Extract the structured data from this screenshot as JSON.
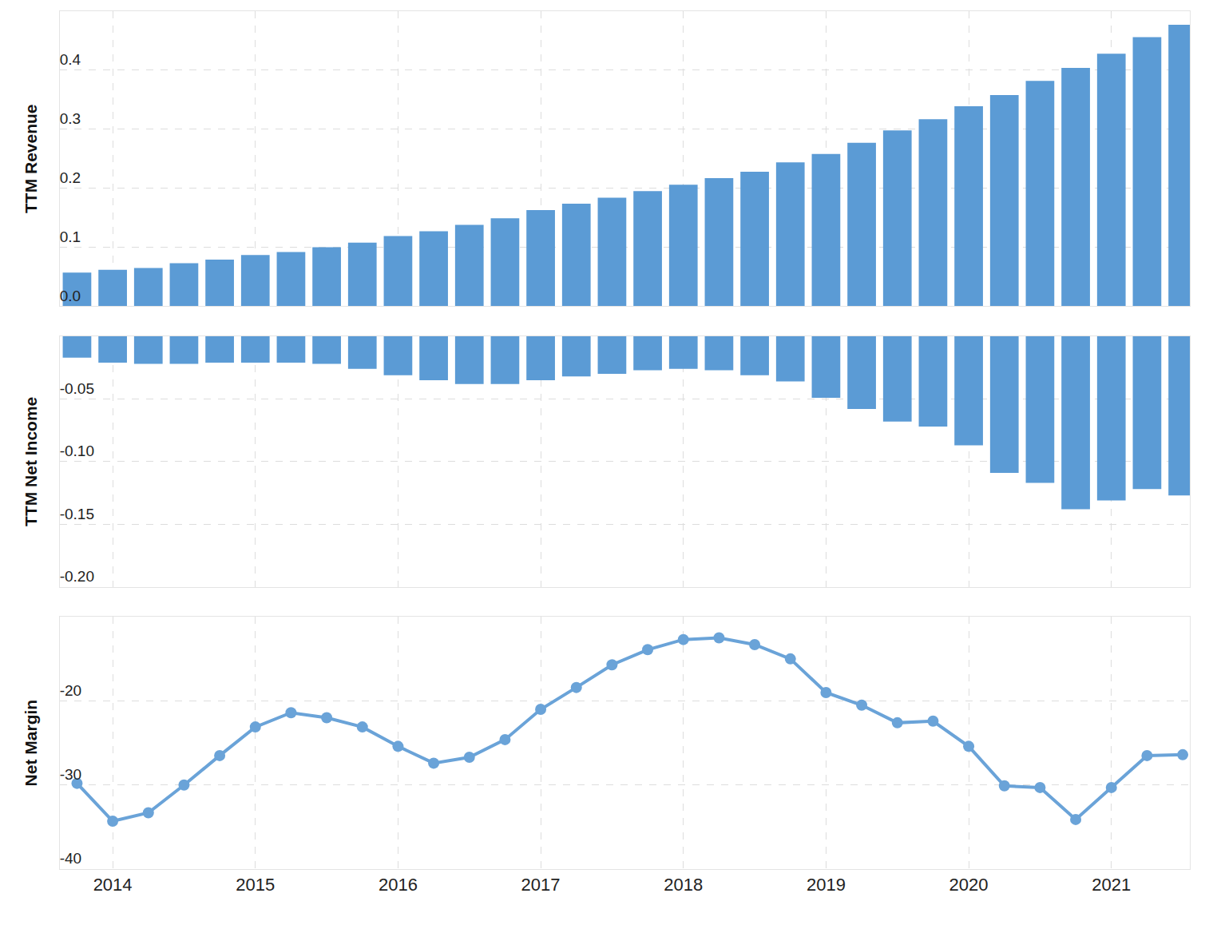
{
  "chart_data": [
    {
      "type": "bar",
      "ylabel": "TTM Revenue",
      "color": "#5b9bd5",
      "grid": true,
      "tick_labels": "y",
      "x": [
        2013.75,
        2014,
        2014.25,
        2014.5,
        2014.75,
        2015,
        2015.25,
        2015.5,
        2015.75,
        2016,
        2016.25,
        2016.5,
        2016.75,
        2017,
        2017.25,
        2017.5,
        2017.75,
        2018,
        2018.25,
        2018.5,
        2018.75,
        2019,
        2019.25,
        2019.5,
        2019.75,
        2020,
        2020.25,
        2020.5,
        2020.75,
        2021,
        2021.25,
        2021.5
      ],
      "values": [
        0.057,
        0.062,
        0.065,
        0.073,
        0.079,
        0.087,
        0.092,
        0.1,
        0.108,
        0.119,
        0.127,
        0.138,
        0.149,
        0.163,
        0.174,
        0.184,
        0.195,
        0.206,
        0.217,
        0.228,
        0.244,
        0.258,
        0.277,
        0.298,
        0.317,
        0.339,
        0.358,
        0.382,
        0.404,
        0.428,
        0.456,
        0.477
      ],
      "xlim": [
        2013.63,
        2021.55
      ],
      "xticks": [
        2014,
        2015,
        2016,
        2017,
        2018,
        2019,
        2020,
        2021
      ],
      "ylim": [
        0,
        0.5
      ],
      "yticks": [
        {
          "value": 0,
          "label": "0.0"
        },
        0.1,
        0.2,
        0.3,
        0.4
      ]
    },
    {
      "type": "bar",
      "ylabel": "TTM Net Income",
      "color": "#5b9bd5",
      "grid": true,
      "tick_labels": "y",
      "x": [
        2013.75,
        2014,
        2014.25,
        2014.5,
        2014.75,
        2015,
        2015.25,
        2015.5,
        2015.75,
        2016,
        2016.25,
        2016.5,
        2016.75,
        2017,
        2017.25,
        2017.5,
        2017.75,
        2018,
        2018.25,
        2018.5,
        2018.75,
        2019,
        2019.25,
        2019.5,
        2019.75,
        2020,
        2020.25,
        2020.5,
        2020.75,
        2021,
        2021.25,
        2021.5
      ],
      "values": [
        -0.017,
        -0.021,
        -0.022,
        -0.022,
        -0.021,
        -0.021,
        -0.021,
        -0.022,
        -0.026,
        -0.031,
        -0.035,
        -0.038,
        -0.038,
        -0.035,
        -0.032,
        -0.03,
        -0.027,
        -0.026,
        -0.027,
        -0.031,
        -0.036,
        -0.049,
        -0.058,
        -0.068,
        -0.072,
        -0.087,
        -0.109,
        -0.117,
        -0.138,
        -0.131,
        -0.122,
        -0.127
      ],
      "xlim": [
        2013.63,
        2021.55
      ],
      "xticks": [
        2014,
        2015,
        2016,
        2017,
        2018,
        2019,
        2020,
        2021
      ],
      "ylim": [
        -0.2,
        0
      ],
      "yticks": [
        {
          "value": -0.2,
          "label": "-0.20"
        },
        -0.15,
        {
          "value": -0.1,
          "label": "-0.10"
        },
        -0.05
      ]
    },
    {
      "type": "line",
      "ylabel": "Net Margin",
      "color": "#6aa3d8",
      "marker": "circle",
      "grid": true,
      "x": [
        2013.75,
        2014,
        2014.25,
        2014.5,
        2014.75,
        2015,
        2015.25,
        2015.5,
        2015.75,
        2016,
        2016.25,
        2016.5,
        2016.75,
        2017,
        2017.25,
        2017.5,
        2017.75,
        2018,
        2018.25,
        2018.5,
        2018.75,
        2019,
        2019.25,
        2019.5,
        2019.75,
        2020,
        2020.25,
        2020.5,
        2020.75,
        2021,
        2021.25,
        2021.5
      ],
      "values": [
        -29.8,
        -34.3,
        -33.3,
        -30.0,
        -26.5,
        -23.1,
        -21.4,
        -22.0,
        -23.1,
        -25.4,
        -27.4,
        -26.7,
        -24.6,
        -21.0,
        -18.4,
        -15.7,
        -13.9,
        -12.7,
        -12.5,
        -13.3,
        -15.0,
        -19.0,
        -20.5,
        -22.6,
        -22.4,
        -25.4,
        -30.1,
        -30.3,
        -34.1,
        -30.3,
        -26.5,
        -26.4
      ],
      "xlim": [
        2013.63,
        2021.55
      ],
      "xticks": [
        2014,
        2015,
        2016,
        2017,
        2018,
        2019,
        2020,
        2021
      ],
      "ylim": [
        -40,
        -10
      ],
      "yticks": [
        -40,
        -30,
        -20
      ]
    }
  ]
}
